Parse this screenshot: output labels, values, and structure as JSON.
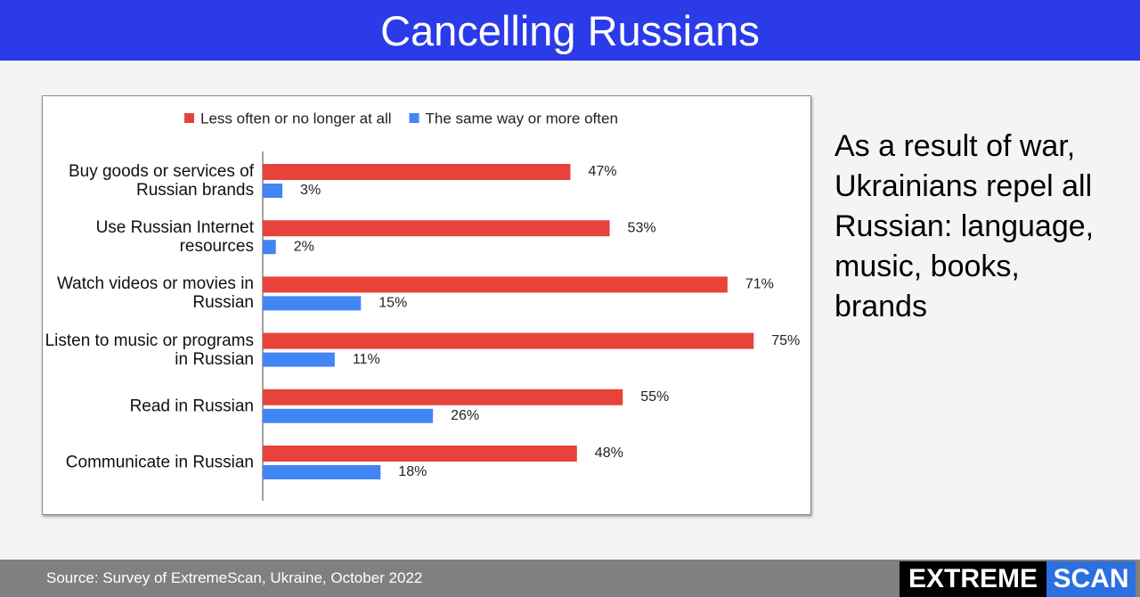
{
  "header": {
    "title": "Cancelling Russians"
  },
  "chart_data": {
    "type": "bar",
    "orientation": "horizontal",
    "categories": [
      "Buy goods or services of Russian brands",
      "Use Russian Internet resources",
      "Watch videos or movies in Russian",
      "Listen to music or programs in Russian",
      "Read in Russian",
      "Communicate in Russian"
    ],
    "series": [
      {
        "name": "Less often or no longer at all",
        "color": "#e8433a",
        "values": [
          47,
          53,
          71,
          75,
          55,
          48
        ],
        "value_labels": [
          "47%",
          "53%",
          "71%",
          "75%",
          "55%",
          "48%"
        ]
      },
      {
        "name": "The same way or more often",
        "color": "#4285f4",
        "values": [
          3,
          2,
          15,
          11,
          26,
          18
        ],
        "value_labels": [
          "3%",
          "2%",
          "15%",
          "11%",
          "26%",
          "18%"
        ]
      }
    ],
    "legend": "top"
  },
  "annotation": "As a result of war, Ukrainians repel all Russian: language, music, books, brands",
  "footer": {
    "source": "Source: Survey of ExtremeScan, Ukraine,  October 2022",
    "logo": [
      "EXTREME",
      "SCAN"
    ]
  }
}
